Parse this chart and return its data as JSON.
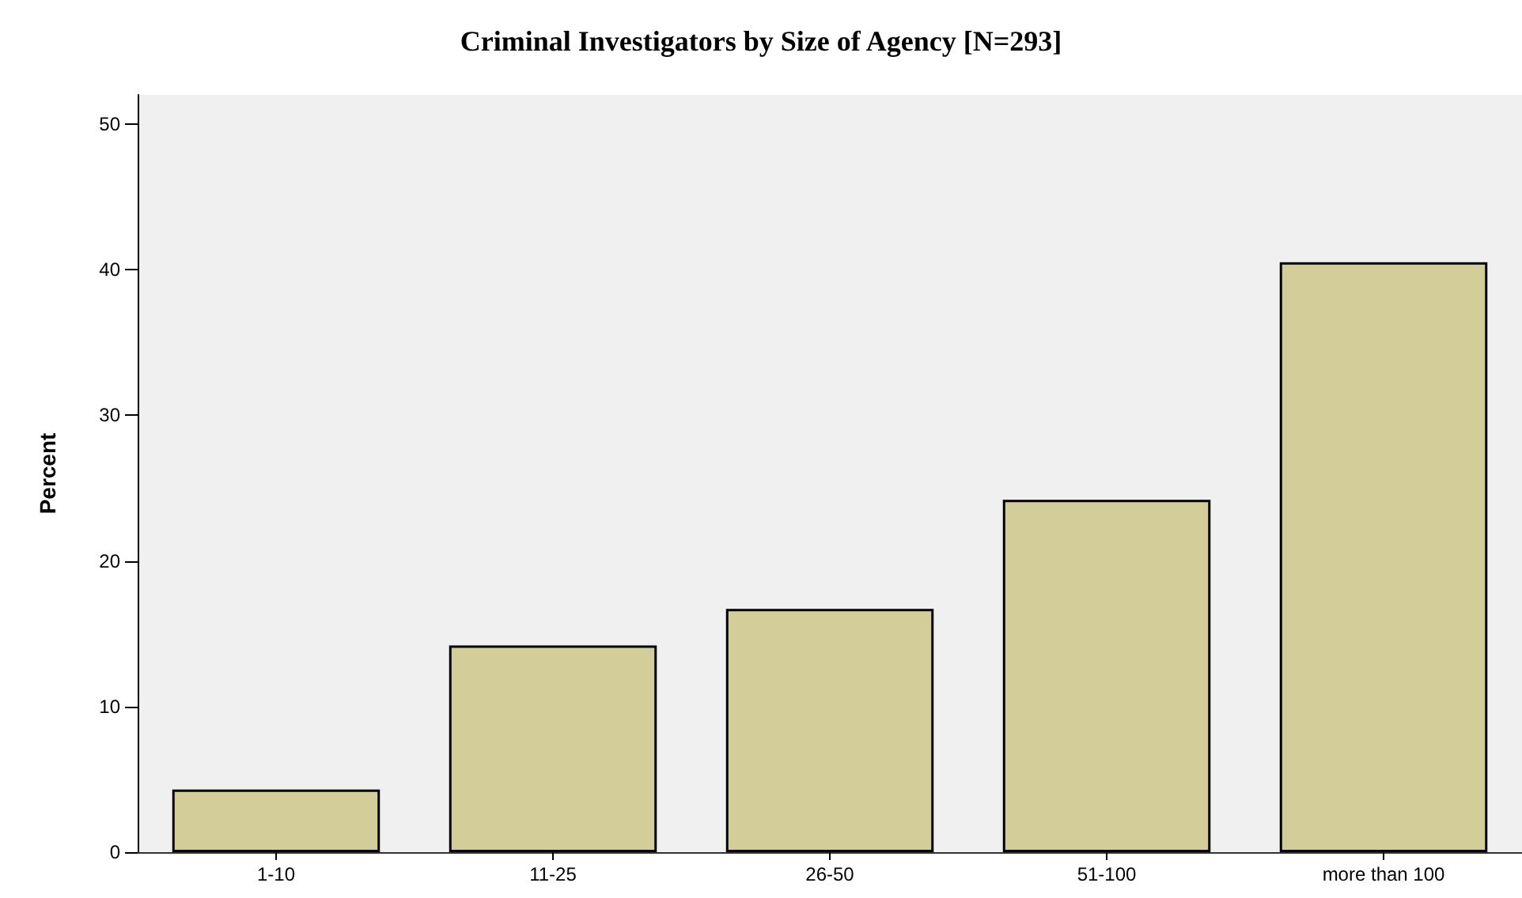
{
  "chart_data": {
    "type": "bar",
    "title": "Criminal Investigators by Size of Agency [N=293]",
    "ylabel": "Percent",
    "categories": [
      "1-10",
      "11-25",
      "26-50",
      "51-100",
      "more than 100"
    ],
    "values": [
      4.3,
      14.2,
      16.7,
      24.2,
      40.5
    ],
    "color": "#d3cd99",
    "ylim": [
      0,
      52
    ],
    "yticks": [
      0,
      10,
      20,
      30,
      40,
      50
    ],
    "grid": false
  }
}
